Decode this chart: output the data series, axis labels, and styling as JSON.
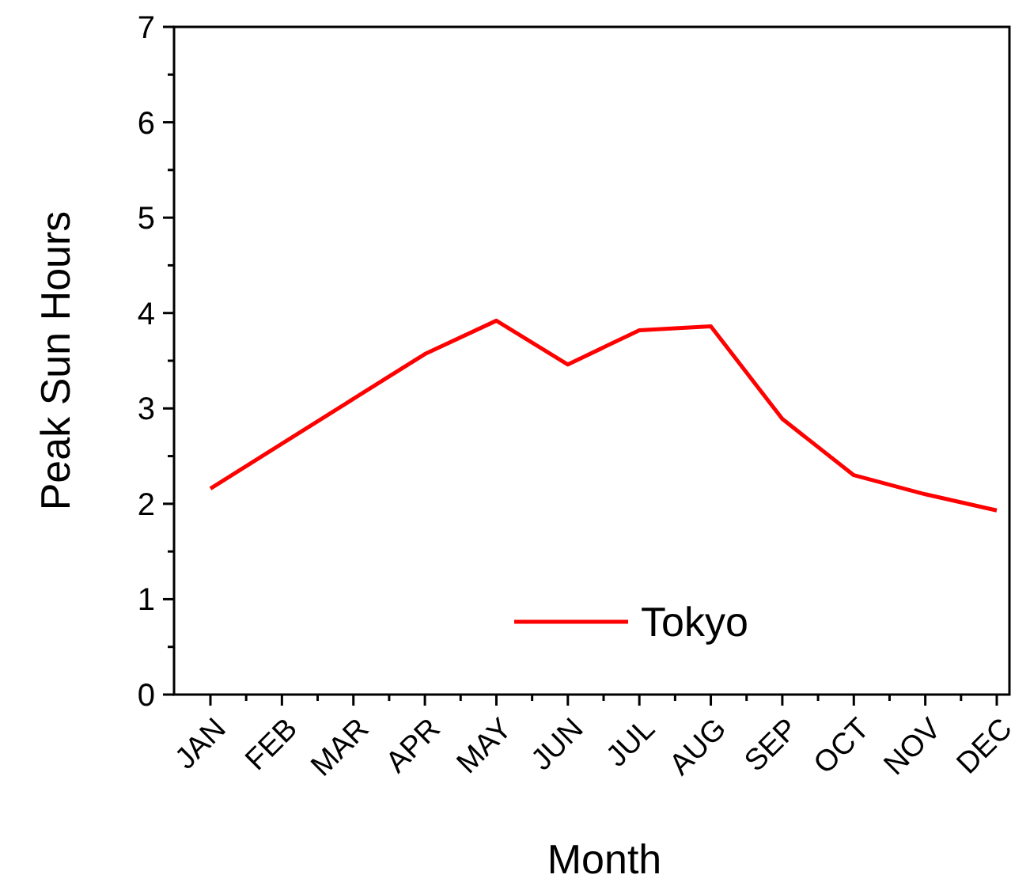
{
  "chart_data": {
    "type": "line",
    "xlabel": "Month",
    "ylabel": "Peak Sun Hours",
    "categories": [
      "JAN",
      "FEB",
      "MAR",
      "APR",
      "MAY",
      "JUN",
      "JUL",
      "AUG",
      "SEP",
      "OCT",
      "NOV",
      "DEC"
    ],
    "series": [
      {
        "name": "Tokyo",
        "color": "#ff0000",
        "values": [
          2.16,
          2.63,
          3.1,
          3.57,
          3.92,
          3.46,
          3.82,
          3.86,
          2.89,
          2.3,
          2.1,
          1.93
        ]
      }
    ],
    "ylim": [
      0,
      7
    ],
    "yticks": [
      0,
      {
        "value": 0.5,
        "label": null
      },
      1,
      {
        "value": 1.5,
        "label": null
      },
      2,
      {
        "value": 2.5,
        "label": null
      },
      3,
      {
        "value": 3.5,
        "label": null
      },
      4,
      {
        "value": 4.5,
        "label": null
      },
      5,
      {
        "value": 5.5,
        "label": null
      },
      6,
      {
        "value": 6.5,
        "label": null
      },
      7
    ],
    "grid": false,
    "legend": "bottom",
    "marker": "none",
    "line_style": "solid"
  }
}
